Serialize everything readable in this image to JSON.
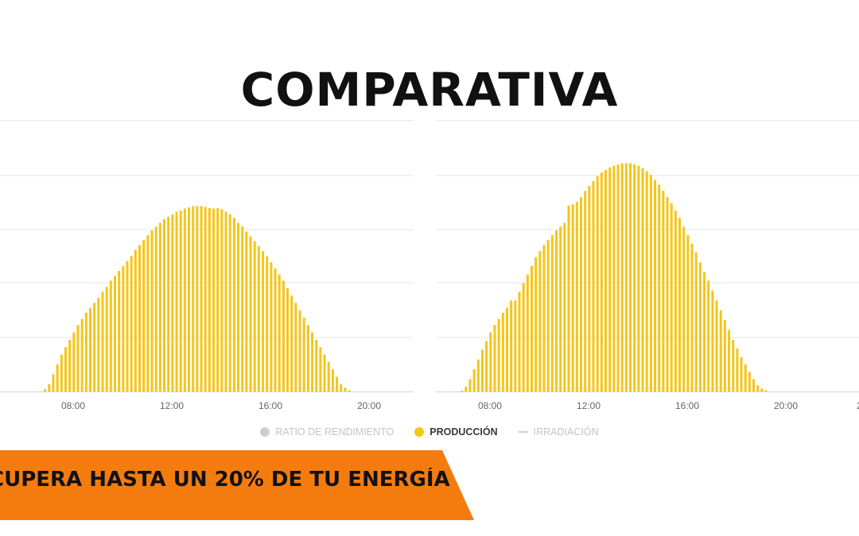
{
  "title": "COMPARATIVA",
  "chart_data": [
    {
      "type": "bar",
      "series": [
        {
          "name": "PRODUCCIÓN",
          "color": "#f5c518"
        }
      ],
      "x_tick_labels": [
        "08:00",
        "12:00",
        "16:00",
        "20:00"
      ],
      "x_start_hour": 6.86,
      "x_step_hours": 0.1667,
      "values": [
        1,
        3,
        7,
        11,
        15,
        18,
        21,
        24,
        27,
        29.5,
        32,
        34,
        36,
        38,
        40.5,
        42.5,
        45,
        47,
        49,
        51,
        53,
        55,
        57.5,
        59.5,
        61.5,
        63.5,
        65.5,
        67,
        68.5,
        70,
        71,
        72,
        73,
        73.5,
        74.3,
        74.8,
        75.3,
        75.3,
        75.3,
        75,
        74.5,
        74.3,
        74.5,
        74,
        73,
        72,
        70.5,
        68.5,
        67,
        65,
        63,
        61,
        59,
        57,
        55,
        52.5,
        50,
        47.5,
        45,
        42,
        39,
        36,
        33,
        30,
        27,
        24,
        21,
        18,
        15,
        12,
        9,
        6,
        3,
        1.5,
        0.5
      ],
      "grid": true
    },
    {
      "type": "bar",
      "series": [
        {
          "name": "PRODUCCIÓN",
          "color": "#f5c518"
        }
      ],
      "x_tick_labels": [
        "08:00",
        "12:00",
        "16:00",
        "20:00"
      ],
      "x_start_hour": 6.86,
      "x_step_hours": 0.1667,
      "values": [
        0.3,
        2,
        5,
        9,
        13,
        17,
        20.5,
        24,
        27,
        29.5,
        32,
        34,
        37,
        37,
        40.5,
        44,
        47.5,
        51,
        54.5,
        57,
        59.5,
        61.5,
        63.5,
        65.5,
        67,
        68.5,
        75.5,
        76,
        77,
        79,
        81.5,
        83.5,
        85.5,
        87.5,
        89,
        90,
        91,
        91.7,
        92.2,
        92.7,
        92.7,
        92.7,
        92.2,
        91.7,
        90.7,
        89.5,
        88,
        86,
        84,
        81.5,
        79,
        76.5,
        73.5,
        70.5,
        67,
        63.5,
        60,
        56.5,
        52.5,
        48.5,
        45,
        41,
        37,
        33,
        29,
        25,
        21,
        17.5,
        14,
        11,
        8,
        5,
        2.5,
        1.2,
        0.5
      ],
      "grid": true
    }
  ],
  "x_axis_partial_label": "2",
  "legend": [
    {
      "label": "RATIO DE RENDIMIENTO",
      "marker": "dot",
      "color": "#cfcfcf",
      "active": false
    },
    {
      "label": "PRODUCCIÓN",
      "marker": "dot",
      "color": "#f5c518",
      "active": true
    },
    {
      "label": "IRRADIACIÓN",
      "marker": "line",
      "color": "#d0d0d0",
      "active": false
    }
  ],
  "banner": {
    "text": "CUPERA HASTA UN 20% DE TU ENERGÍA",
    "color": "#f47c0f"
  }
}
